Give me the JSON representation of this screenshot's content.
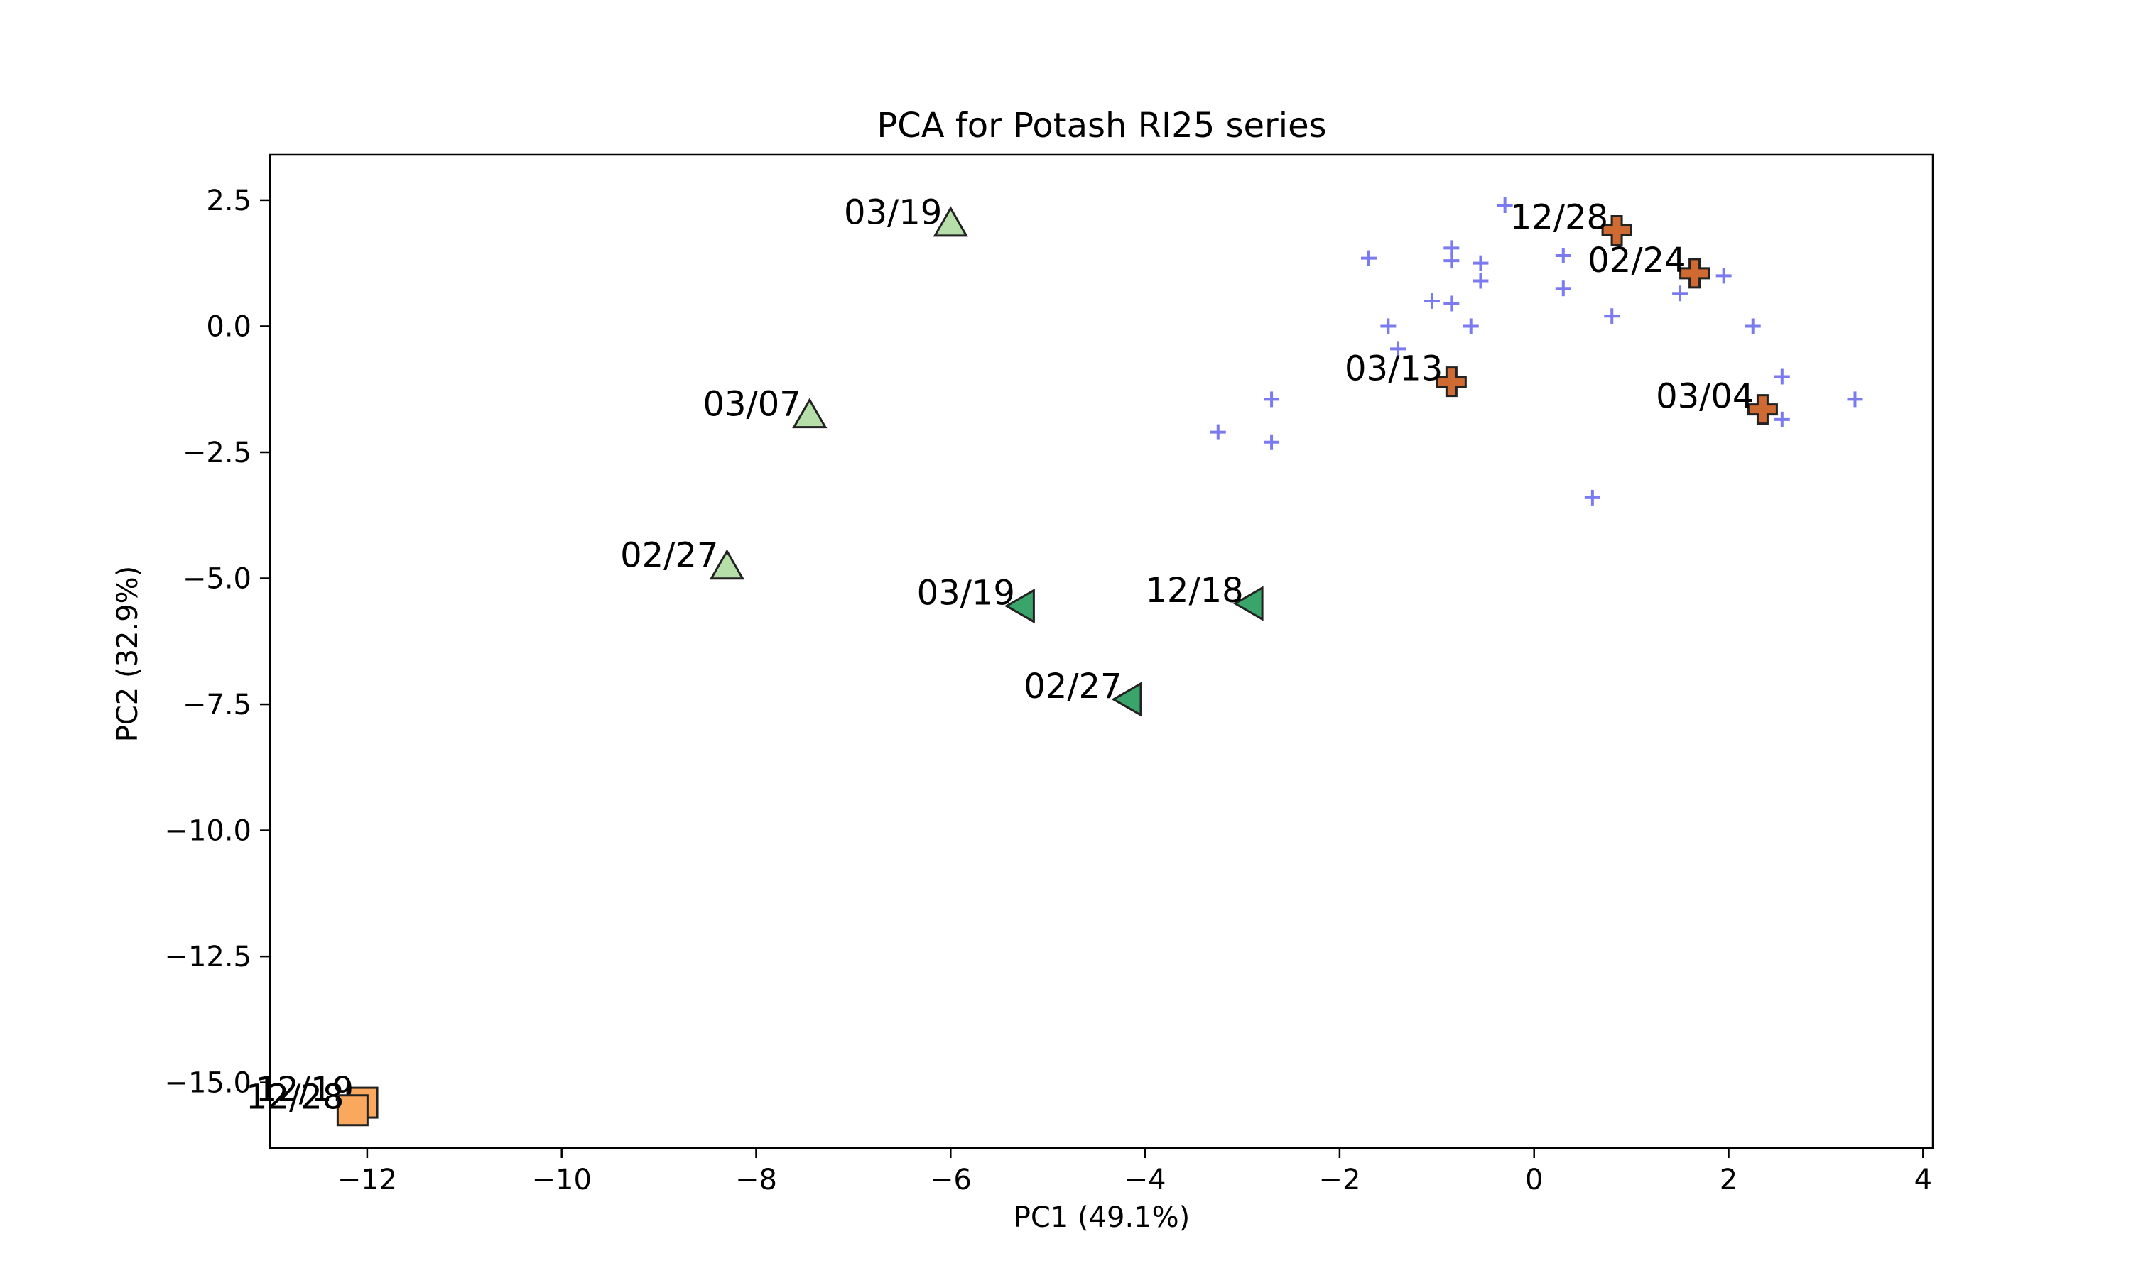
{
  "chart_data": {
    "type": "scatter",
    "title": "PCA for Potash RI25 series",
    "xlabel": "PC1 (49.1%)",
    "ylabel": "PC2 (32.9%)",
    "xlim": [
      -13,
      4.1
    ],
    "ylim": [
      -16.3,
      3.4
    ],
    "xticks": [
      -12,
      -10,
      -8,
      -6,
      -4,
      -2,
      0,
      2,
      4
    ],
    "yticks": [
      2.5,
      0.0,
      -2.5,
      -5.0,
      -7.5,
      -10.0,
      -12.5,
      -15.0
    ],
    "xtick_labels": [
      "−12",
      "−10",
      "−8",
      "−6",
      "−4",
      "−2",
      "0",
      "2",
      "4"
    ],
    "ytick_labels": [
      "2.5",
      "0.0",
      "−2.5",
      "−5.0",
      "−7.5",
      "−10.0",
      "−12.5",
      "−15.0"
    ],
    "grid": false,
    "background_points": {
      "marker": "plus",
      "color": "#7b7bf0",
      "points": [
        [
          -0.3,
          2.4
        ],
        [
          -1.7,
          1.35
        ],
        [
          -0.85,
          1.55
        ],
        [
          -0.85,
          1.3
        ],
        [
          -0.55,
          1.25
        ],
        [
          0.3,
          1.4
        ],
        [
          -1.05,
          0.5
        ],
        [
          -0.85,
          0.45
        ],
        [
          -0.55,
          0.9
        ],
        [
          0.3,
          0.75
        ],
        [
          0.8,
          0.2
        ],
        [
          1.5,
          0.65
        ],
        [
          1.95,
          1.0
        ],
        [
          -1.5,
          0.0
        ],
        [
          -0.65,
          0.0
        ],
        [
          2.25,
          0.0
        ],
        [
          -1.4,
          -0.45
        ],
        [
          2.55,
          -1.0
        ],
        [
          -2.7,
          -1.45
        ],
        [
          3.3,
          -1.45
        ],
        [
          2.55,
          -1.85
        ],
        [
          -3.25,
          -2.1
        ],
        [
          -2.7,
          -2.3
        ],
        [
          0.6,
          -3.4
        ]
      ]
    },
    "series": [
      {
        "marker": "plus-filled",
        "color": "#cf6a32",
        "points": [
          {
            "x": 0.85,
            "y": 1.9,
            "label": "12/28"
          },
          {
            "x": 1.65,
            "y": 1.05,
            "label": "02/24"
          },
          {
            "x": -0.85,
            "y": -1.1,
            "label": "03/13"
          },
          {
            "x": 2.35,
            "y": -1.65,
            "label": "03/04"
          }
        ]
      },
      {
        "marker": "triangle-up",
        "color": "#b5dea9",
        "points": [
          {
            "x": -6.0,
            "y": 2.0,
            "label": "03/19"
          },
          {
            "x": -7.45,
            "y": -1.8,
            "label": "03/07"
          },
          {
            "x": -8.3,
            "y": -4.8,
            "label": "02/27"
          }
        ]
      },
      {
        "marker": "triangle-left",
        "color": "#3aa56a",
        "points": [
          {
            "x": -5.25,
            "y": -5.55,
            "label": "03/19"
          },
          {
            "x": -2.9,
            "y": -5.5,
            "label": "12/18"
          },
          {
            "x": -4.15,
            "y": -7.4,
            "label": "02/27"
          }
        ]
      },
      {
        "marker": "square",
        "color": "#f9a85e",
        "points": [
          {
            "x": -12.05,
            "y": -15.4,
            "label": "12/19"
          },
          {
            "x": -12.15,
            "y": -15.55,
            "label": "12/28"
          }
        ]
      }
    ]
  }
}
